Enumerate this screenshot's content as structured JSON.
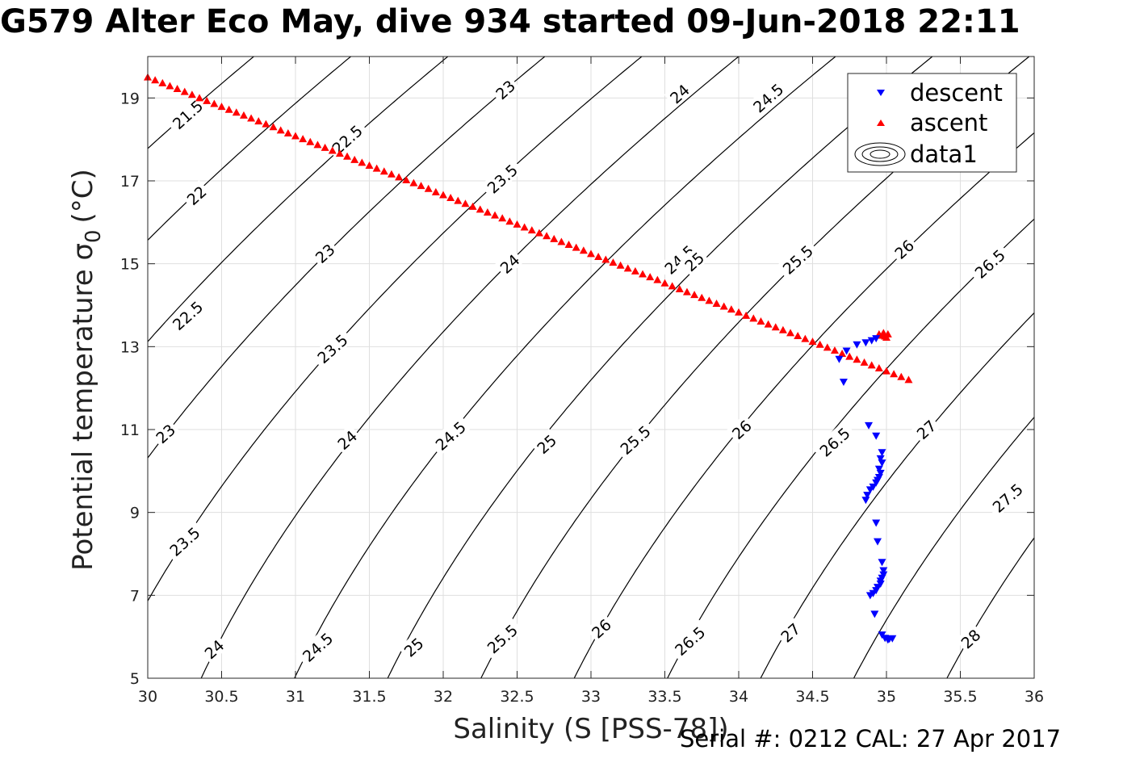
{
  "title": "G579 Alter Eco May, dive 934 started 09-Jun-2018 22:11",
  "footer": "Serial #: 0212  CAL: 27 Apr 2017",
  "chart_data": {
    "type": "scatter",
    "title": "G579 Alter Eco May, dive 934 started 09-Jun-2018 22:11",
    "xlabel": "Salinity (S [PSS-78])",
    "ylabel_text": "Potential temperature σ",
    "ylabel_sub": "0",
    "ylabel_unit": "(°C)",
    "xlim": [
      30,
      36
    ],
    "ylim": [
      5,
      20
    ],
    "xticks": [
      30,
      30.5,
      31,
      31.5,
      32,
      32.5,
      33,
      33.5,
      34,
      34.5,
      35,
      35.5,
      36
    ],
    "xtick_labels": [
      "30",
      "30.5",
      "31",
      "31.5",
      "32",
      "32.5",
      "33",
      "33.5",
      "34",
      "34.5",
      "35",
      "35.5",
      "36"
    ],
    "yticks": [
      5,
      7,
      9,
      11,
      13,
      15,
      17,
      19
    ],
    "ytick_labels": [
      "5",
      "7",
      "9",
      "11",
      "13",
      "15",
      "17",
      "19"
    ],
    "grid": true,
    "legend_position": "top-right",
    "series": [
      {
        "name": "descent",
        "marker": "down-triangle",
        "color": "#0000ff",
        "points": [
          [
            34.93,
            13.2
          ],
          [
            34.9,
            13.15
          ],
          [
            34.86,
            13.1
          ],
          [
            34.8,
            13.05
          ],
          [
            34.73,
            12.9
          ],
          [
            34.68,
            12.7
          ],
          [
            34.71,
            12.15
          ],
          [
            34.88,
            11.1
          ],
          [
            34.93,
            10.85
          ],
          [
            34.97,
            10.45
          ],
          [
            34.96,
            10.3
          ],
          [
            34.97,
            10.2
          ],
          [
            34.95,
            10.05
          ],
          [
            34.96,
            9.95
          ],
          [
            34.95,
            9.85
          ],
          [
            34.94,
            9.78
          ],
          [
            34.93,
            9.72
          ],
          [
            34.91,
            9.62
          ],
          [
            34.89,
            9.55
          ],
          [
            34.87,
            9.42
          ],
          [
            34.86,
            9.3
          ],
          [
            34.93,
            8.75
          ],
          [
            34.94,
            8.3
          ],
          [
            34.97,
            7.8
          ],
          [
            34.98,
            7.6
          ],
          [
            34.98,
            7.5
          ],
          [
            34.97,
            7.42
          ],
          [
            34.96,
            7.35
          ],
          [
            34.96,
            7.28
          ],
          [
            34.94,
            7.2
          ],
          [
            34.93,
            7.12
          ],
          [
            34.91,
            7.05
          ],
          [
            34.89,
            7.0
          ],
          [
            34.92,
            6.55
          ],
          [
            34.97,
            6.05
          ],
          [
            34.99,
            5.97
          ],
          [
            35.01,
            5.93
          ],
          [
            35.02,
            5.95
          ],
          [
            35.04,
            5.96
          ]
        ]
      },
      {
        "name": "ascent",
        "marker": "up-triangle",
        "color": "#ff0000",
        "points": [
          [
            30.0,
            19.5
          ],
          [
            30.05,
            19.43
          ],
          [
            30.1,
            19.36
          ],
          [
            30.15,
            19.29
          ],
          [
            30.2,
            19.22
          ],
          [
            30.25,
            19.15
          ],
          [
            30.3,
            19.08
          ],
          [
            30.35,
            19.0
          ],
          [
            30.4,
            18.93
          ],
          [
            30.45,
            18.86
          ],
          [
            30.5,
            18.79
          ],
          [
            30.55,
            18.72
          ],
          [
            30.6,
            18.65
          ],
          [
            30.65,
            18.58
          ],
          [
            30.7,
            18.51
          ],
          [
            30.75,
            18.44
          ],
          [
            30.8,
            18.37
          ],
          [
            30.85,
            18.3
          ],
          [
            30.9,
            18.22
          ],
          [
            30.95,
            18.15
          ],
          [
            31.0,
            18.08
          ],
          [
            31.05,
            18.01
          ],
          [
            31.1,
            17.94
          ],
          [
            31.15,
            17.87
          ],
          [
            31.2,
            17.8
          ],
          [
            31.25,
            17.73
          ],
          [
            31.3,
            17.66
          ],
          [
            31.35,
            17.59
          ],
          [
            31.4,
            17.51
          ],
          [
            31.45,
            17.44
          ],
          [
            31.5,
            17.37
          ],
          [
            31.55,
            17.3
          ],
          [
            31.6,
            17.23
          ],
          [
            31.65,
            17.16
          ],
          [
            31.7,
            17.09
          ],
          [
            31.75,
            17.02
          ],
          [
            31.8,
            16.95
          ],
          [
            31.85,
            16.88
          ],
          [
            31.9,
            16.81
          ],
          [
            31.95,
            16.73
          ],
          [
            32.0,
            16.66
          ],
          [
            32.05,
            16.59
          ],
          [
            32.1,
            16.52
          ],
          [
            32.15,
            16.45
          ],
          [
            32.2,
            16.38
          ],
          [
            32.25,
            16.31
          ],
          [
            32.3,
            16.24
          ],
          [
            32.35,
            16.17
          ],
          [
            32.4,
            16.1
          ],
          [
            32.45,
            16.02
          ],
          [
            32.5,
            15.95
          ],
          [
            32.55,
            15.88
          ],
          [
            32.6,
            15.81
          ],
          [
            32.65,
            15.74
          ],
          [
            32.7,
            15.67
          ],
          [
            32.75,
            15.6
          ],
          [
            32.8,
            15.53
          ],
          [
            32.85,
            15.46
          ],
          [
            32.9,
            15.39
          ],
          [
            32.95,
            15.32
          ],
          [
            33.0,
            15.24
          ],
          [
            33.05,
            15.17
          ],
          [
            33.1,
            15.1
          ],
          [
            33.15,
            15.03
          ],
          [
            33.2,
            14.96
          ],
          [
            33.25,
            14.89
          ],
          [
            33.3,
            14.82
          ],
          [
            33.35,
            14.75
          ],
          [
            33.4,
            14.68
          ],
          [
            33.45,
            14.61
          ],
          [
            33.5,
            14.53
          ],
          [
            33.55,
            14.46
          ],
          [
            33.6,
            14.39
          ],
          [
            33.65,
            14.32
          ],
          [
            33.7,
            14.25
          ],
          [
            33.75,
            14.18
          ],
          [
            33.8,
            14.11
          ],
          [
            33.85,
            14.04
          ],
          [
            33.9,
            13.97
          ],
          [
            33.95,
            13.9
          ],
          [
            34.0,
            13.83
          ],
          [
            34.05,
            13.75
          ],
          [
            34.1,
            13.68
          ],
          [
            34.15,
            13.61
          ],
          [
            34.2,
            13.54
          ],
          [
            34.25,
            13.47
          ],
          [
            34.3,
            13.4
          ],
          [
            34.35,
            13.33
          ],
          [
            34.4,
            13.26
          ],
          [
            34.45,
            13.19
          ],
          [
            34.5,
            13.12
          ],
          [
            34.55,
            13.05
          ],
          [
            34.6,
            12.98
          ],
          [
            34.65,
            12.91
          ],
          [
            34.7,
            12.83
          ],
          [
            34.75,
            12.76
          ],
          [
            34.8,
            12.69
          ],
          [
            34.85,
            12.62
          ],
          [
            34.9,
            12.55
          ],
          [
            34.95,
            12.48
          ],
          [
            35.0,
            12.41
          ],
          [
            35.05,
            12.34
          ],
          [
            35.1,
            12.27
          ],
          [
            35.15,
            12.2
          ],
          [
            34.95,
            13.3
          ],
          [
            34.97,
            13.27
          ],
          [
            34.99,
            13.25
          ],
          [
            35.0,
            13.22
          ],
          [
            34.98,
            13.33
          ],
          [
            35.01,
            13.3
          ]
        ]
      },
      {
        "name": "data1",
        "type": "contour"
      }
    ],
    "contours": {
      "levels": [
        21.5,
        22,
        22.5,
        23,
        23.5,
        24,
        24.5,
        25,
        25.5,
        26,
        26.5,
        27,
        27.5,
        28
      ],
      "labels": [
        {
          "text": "21.5",
          "s": 30.27,
          "t": 18.6
        },
        {
          "text": "22",
          "s": 30.33,
          "t": 16.65
        },
        {
          "text": "22.5",
          "s": 30.27,
          "t": 13.75
        },
        {
          "text": "23",
          "s": 30.12,
          "t": 10.9
        },
        {
          "text": "23.5",
          "s": 30.25,
          "t": 8.3
        },
        {
          "text": "24",
          "s": 30.45,
          "t": 5.7
        },
        {
          "text": "22.5",
          "s": 31.35,
          "t": 18.0
        },
        {
          "text": "23",
          "s": 31.2,
          "t": 15.25
        },
        {
          "text": "23.5",
          "s": 31.25,
          "t": 12.95
        },
        {
          "text": "24",
          "s": 31.35,
          "t": 10.75
        },
        {
          "text": "24.5",
          "s": 31.15,
          "t": 5.75
        },
        {
          "text": "23",
          "s": 32.42,
          "t": 19.2
        },
        {
          "text": "23.5",
          "s": 32.4,
          "t": 17.05
        },
        {
          "text": "24",
          "s": 32.45,
          "t": 15.0
        },
        {
          "text": "24.5",
          "s": 32.05,
          "t": 10.85
        },
        {
          "text": "25",
          "s": 31.8,
          "t": 5.75
        },
        {
          "text": "24",
          "s": 33.6,
          "t": 19.1
        },
        {
          "text": "24.5",
          "s": 33.6,
          "t": 15.1
        },
        {
          "text": "25",
          "s": 32.7,
          "t": 10.65
        },
        {
          "text": "25.5",
          "s": 32.4,
          "t": 5.95
        },
        {
          "text": "24.5",
          "s": 34.2,
          "t": 19.0
        },
        {
          "text": "25",
          "s": 33.7,
          "t": 15.05
        },
        {
          "text": "25.5",
          "s": 33.3,
          "t": 10.75
        },
        {
          "text": "26",
          "s": 33.07,
          "t": 6.2
        },
        {
          "text": "25.5",
          "s": 34.4,
          "t": 15.1
        },
        {
          "text": "26",
          "s": 34.02,
          "t": 11.0
        },
        {
          "text": "26.5",
          "s": 33.67,
          "t": 5.9
        },
        {
          "text": "26",
          "s": 35.12,
          "t": 15.35
        },
        {
          "text": "26.5",
          "s": 34.65,
          "t": 10.7
        },
        {
          "text": "27",
          "s": 34.35,
          "t": 6.1
        },
        {
          "text": "26.5",
          "s": 35.7,
          "t": 15.0
        },
        {
          "text": "27",
          "s": 35.27,
          "t": 11.0
        },
        {
          "text": "28",
          "s": 35.57,
          "t": 5.95
        },
        {
          "text": "27.5",
          "s": 35.82,
          "t": 9.35
        }
      ]
    }
  },
  "legend": {
    "items": [
      {
        "label": "descent",
        "marker": "down-triangle",
        "color": "#0000ff"
      },
      {
        "label": "ascent",
        "marker": "up-triangle",
        "color": "#ff0000"
      },
      {
        "label": "data1",
        "marker": "contour-ellipses",
        "color": "#000000"
      }
    ]
  }
}
